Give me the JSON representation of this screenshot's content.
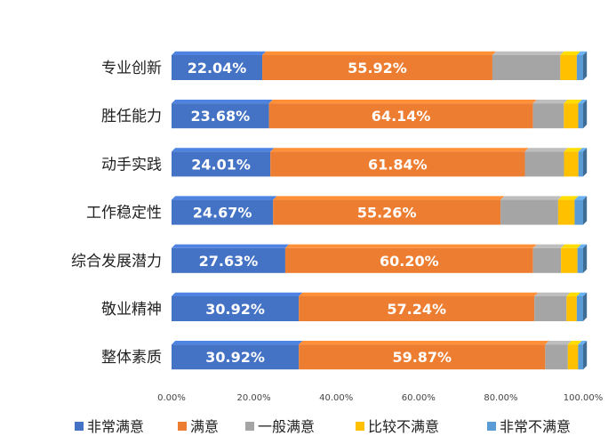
{
  "chart_data": {
    "type": "bar",
    "orientation": "horizontal",
    "stacked": true,
    "percent_stacked": true,
    "categories": [
      "专业创新",
      "胜任能力",
      "动手实践",
      "工作稳定性",
      "综合发展潜力",
      "敬业精神",
      "整体素质"
    ],
    "series": [
      {
        "name": "非常满意",
        "color": "#4472c4",
        "values": [
          22.04,
          23.68,
          24.01,
          24.67,
          27.63,
          30.92,
          30.92
        ]
      },
      {
        "name": "满意",
        "color": "#ed7d31",
        "values": [
          55.92,
          64.14,
          61.84,
          55.26,
          60.2,
          57.24,
          59.87
        ]
      },
      {
        "name": "一般满意",
        "color": "#a5a5a5",
        "values": [
          16.5,
          7.5,
          9.5,
          14.0,
          6.8,
          7.8,
          5.5
        ]
      },
      {
        "name": "比较不满意",
        "color": "#ffc000",
        "values": [
          4.0,
          3.5,
          3.5,
          4.0,
          4.0,
          2.5,
          2.5
        ]
      },
      {
        "name": "非常不满意",
        "color": "#5b9bd5",
        "values": [
          1.54,
          1.18,
          1.15,
          2.07,
          1.37,
          1.54,
          1.21
        ]
      }
    ],
    "data_labels": [
      [
        "22.04%",
        "23.68%",
        "24.01%",
        "24.67%",
        "27.63%",
        "30.92%",
        "30.92%"
      ],
      [
        "55.92%",
        "64.14%",
        "61.84%",
        "55.26%",
        "60.20%",
        "57.24%",
        "59.87%"
      ]
    ],
    "x_ticks": [
      "0.00%",
      "20.00%",
      "40.00%",
      "60.00%",
      "80.00%",
      "100.00%"
    ],
    "xlim": [
      0,
      100
    ],
    "grid": false,
    "legend_position": "bottom"
  }
}
